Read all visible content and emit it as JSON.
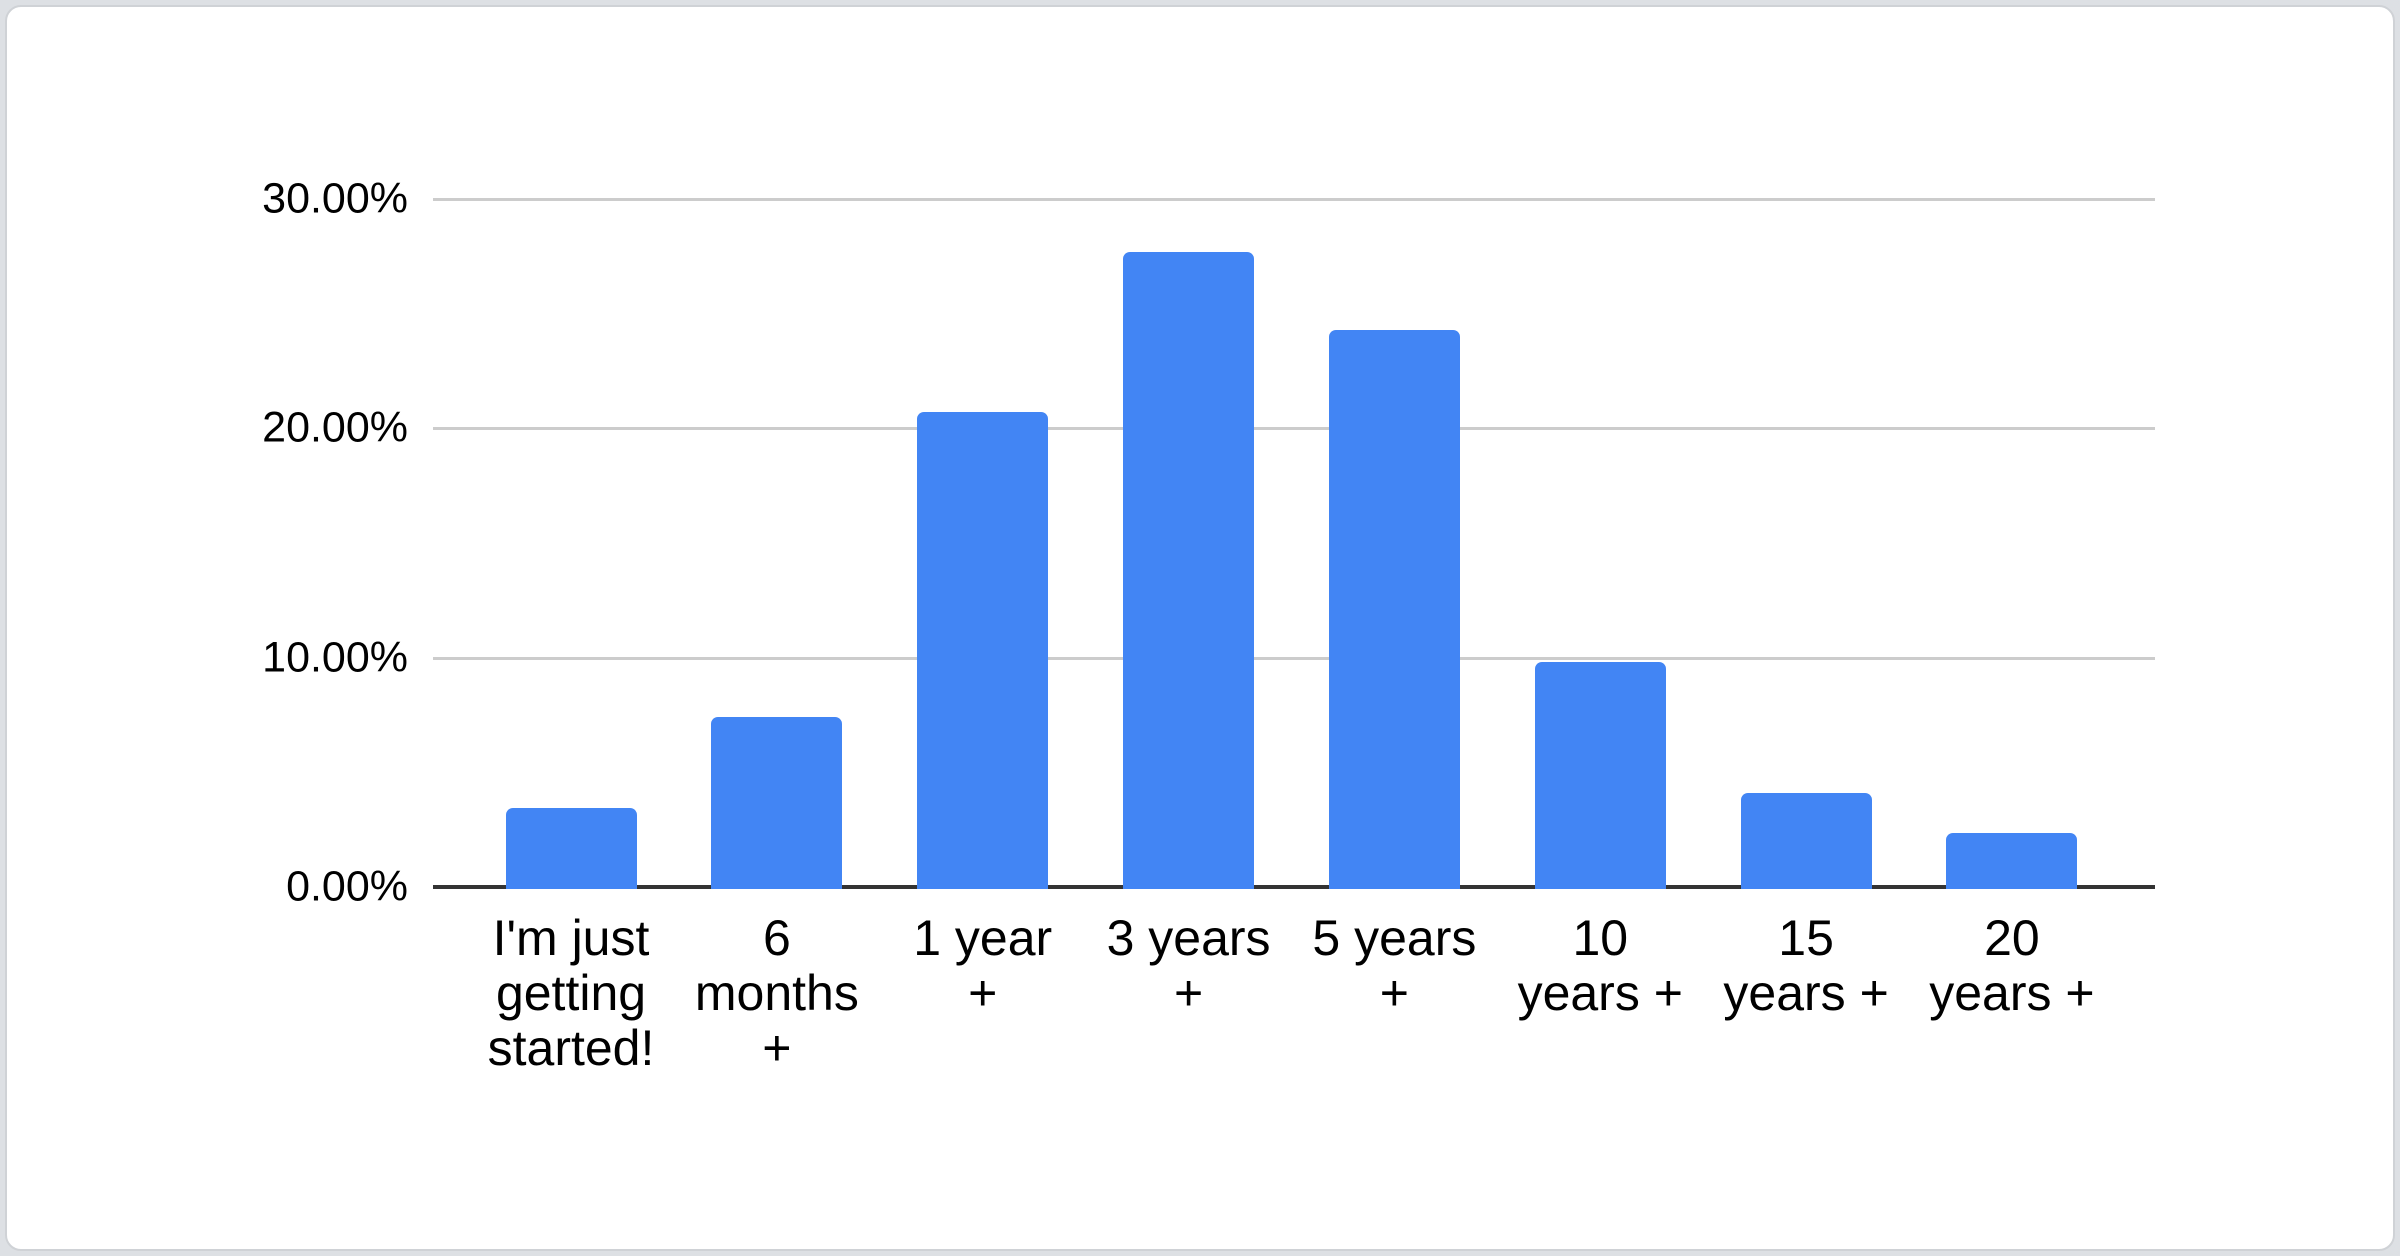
{
  "page": {
    "background_color": "#dde0e4",
    "card_background": "#ffffff",
    "card_border_color": "#cfd2d6"
  },
  "chart_data": {
    "type": "bar",
    "title": "",
    "xlabel": "",
    "ylabel": "",
    "categories": [
      "I'm just getting started!",
      "6 months +",
      "1 year +",
      "3 years +",
      "5 years +",
      "10 years +",
      "15 years +",
      "20 years +"
    ],
    "category_lines": [
      [
        "I'm just",
        "getting",
        "started!"
      ],
      [
        "6",
        "months",
        "+"
      ],
      [
        "1 year",
        "+"
      ],
      [
        "3 years",
        "+"
      ],
      [
        "5 years",
        "+"
      ],
      [
        "10",
        "years +"
      ],
      [
        "15",
        "years +"
      ],
      [
        "20",
        "years +"
      ]
    ],
    "values": [
      3.45,
      7.4,
      20.7,
      27.7,
      24.3,
      9.8,
      4.1,
      2.35
    ],
    "value_unit": "percent",
    "ylim": [
      0,
      30
    ],
    "y_ticks": [
      {
        "value": 0,
        "label": "0.00%"
      },
      {
        "value": 10,
        "label": "10.00%"
      },
      {
        "value": 20,
        "label": "20.00%"
      },
      {
        "value": 30,
        "label": "30.00%"
      }
    ],
    "grid": true,
    "legend": "none",
    "bar_color": "#4285F4",
    "gridline_color": "#cccccc",
    "axis_line_color": "#333333",
    "label_color": "#000000"
  }
}
